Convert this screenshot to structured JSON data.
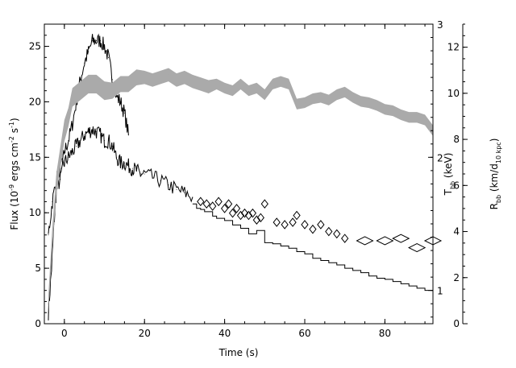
{
  "chart_data": {
    "type": "line",
    "xlabel": "Time (s)",
    "xlim": [
      -5,
      92
    ],
    "x_ticks": [
      0,
      20,
      40,
      60,
      80
    ],
    "left_axis": {
      "label_parts": [
        "Flux (10",
        "-9",
        " ergs cm",
        "-2",
        " s",
        "-1",
        ")"
      ],
      "ylim": [
        0,
        27
      ],
      "ticks": [
        0,
        5,
        10,
        15,
        20,
        25
      ]
    },
    "kT_axis": {
      "label_parts": [
        "T",
        "bb",
        " (keV)"
      ],
      "ylim": [
        0.75,
        3.0
      ],
      "ticks": [
        1,
        2,
        3
      ]
    },
    "radius_axis": {
      "label_parts": [
        "R",
        "bb",
        " (km/d",
        "10 kpc",
        ")"
      ],
      "ylim": [
        0,
        13
      ],
      "ticks": [
        0,
        2,
        4,
        6,
        8,
        10,
        12
      ]
    },
    "colors": {
      "kT_band": "#aaaaaa",
      "lines": "#000000"
    },
    "series": [
      {
        "axis": "left",
        "style": "noisy-line",
        "x": [
          -4,
          -3.2,
          -2.6,
          -2,
          -1,
          0,
          1,
          2,
          3,
          4,
          5,
          6,
          7,
          8,
          9,
          10,
          11,
          12,
          13,
          14,
          15,
          16
        ],
        "values": [
          1,
          5,
          9,
          12,
          13,
          15.5,
          16.5,
          18,
          20,
          22,
          23.5,
          24.5,
          25.5,
          25.5,
          25.5,
          25,
          24,
          22,
          20.5,
          20,
          19,
          17
        ]
      },
      {
        "axis": "left",
        "style": "noisy-line",
        "x": [
          -4,
          -3,
          -2,
          -1,
          0,
          1,
          2,
          3,
          4,
          5,
          6,
          7,
          8,
          9,
          10,
          11,
          12,
          13,
          14,
          15,
          16,
          17,
          18,
          19,
          20,
          22,
          24,
          26,
          28,
          30,
          32
        ],
        "values": [
          8,
          11,
          13,
          14,
          14.5,
          15,
          15.5,
          16,
          16.5,
          17,
          17.3,
          17.5,
          17.3,
          17,
          16.5,
          16.5,
          16,
          15,
          14.5,
          14.5,
          14.2,
          14,
          13.8,
          13.5,
          13.5,
          13.2,
          12.9,
          12.5,
          12.1,
          11.8,
          11.4
        ]
      },
      {
        "axis": "left",
        "style": "step",
        "x": [
          32,
          33,
          34,
          35,
          37,
          38,
          40,
          42,
          44,
          46,
          48,
          50,
          52,
          54,
          56,
          58,
          60,
          62,
          64,
          66,
          68,
          70,
          72,
          74,
          76,
          78,
          80,
          82,
          84,
          86,
          88,
          90,
          92
        ],
        "values": [
          10.8,
          10.4,
          10.3,
          10.1,
          9.7,
          9.5,
          9.3,
          8.9,
          8.6,
          8.1,
          8.4,
          7.3,
          7.2,
          7.0,
          6.8,
          6.5,
          6.3,
          5.9,
          5.7,
          5.5,
          5.3,
          5.0,
          4.8,
          4.6,
          4.3,
          4.1,
          4.0,
          3.8,
          3.6,
          3.4,
          3.2,
          3.0,
          3.0
        ]
      },
      {
        "axis": "radius",
        "style": "diamonds",
        "x": [
          34,
          35.5,
          37,
          38.5,
          40,
          41,
          42,
          43,
          44,
          45,
          46,
          47,
          48,
          49,
          50,
          53,
          55,
          57,
          58,
          60,
          62,
          64,
          66,
          68,
          70,
          75,
          80,
          84,
          88,
          92
        ],
        "values": [
          5.3,
          5.2,
          5.1,
          5.3,
          5.0,
          5.2,
          4.8,
          5.0,
          4.7,
          4.8,
          4.7,
          4.8,
          4.5,
          4.6,
          5.2,
          4.4,
          4.3,
          4.4,
          4.7,
          4.3,
          4.1,
          4.3,
          4.0,
          3.9,
          3.7,
          3.6,
          3.6,
          3.7,
          3.3,
          3.6
        ]
      },
      {
        "axis": "kT",
        "style": "band",
        "x": [
          -4,
          -3,
          -2,
          -1,
          0,
          1,
          2,
          4,
          6,
          8,
          10,
          12,
          14,
          16,
          18,
          20,
          22,
          24,
          26,
          28,
          30,
          32,
          34,
          36,
          38,
          40,
          42,
          44,
          46,
          48,
          50,
          52,
          54,
          56,
          58,
          60,
          62,
          64,
          66,
          68,
          70,
          72,
          74,
          76,
          78,
          80,
          82,
          84,
          86,
          88,
          90,
          92
        ],
        "values": [
          0.9,
          1.4,
          1.8,
          2.0,
          2.2,
          2.3,
          2.45,
          2.5,
          2.55,
          2.55,
          2.5,
          2.5,
          2.55,
          2.55,
          2.6,
          2.6,
          2.58,
          2.6,
          2.62,
          2.58,
          2.6,
          2.57,
          2.55,
          2.53,
          2.55,
          2.52,
          2.5,
          2.55,
          2.5,
          2.52,
          2.47,
          2.55,
          2.57,
          2.55,
          2.4,
          2.41,
          2.44,
          2.45,
          2.43,
          2.47,
          2.49,
          2.45,
          2.42,
          2.41,
          2.39,
          2.36,
          2.35,
          2.32,
          2.3,
          2.3,
          2.28,
          2.2
        ],
        "widths": [
          0.06,
          0.08,
          0.08,
          0.08,
          0.08,
          0.07,
          0.07,
          0.07,
          0.07,
          0.07,
          0.07,
          0.06,
          0.06,
          0.06,
          0.06,
          0.05,
          0.05,
          0.05,
          0.05,
          0.05,
          0.05,
          0.05,
          0.05,
          0.05,
          0.04,
          0.04,
          0.04,
          0.04,
          0.04,
          0.04,
          0.04,
          0.04,
          0.04,
          0.04,
          0.04,
          0.04,
          0.04,
          0.04,
          0.04,
          0.04,
          0.04,
          0.04,
          0.04,
          0.04,
          0.04,
          0.04,
          0.04,
          0.04,
          0.04,
          0.04,
          0.04,
          0.04
        ]
      }
    ]
  }
}
